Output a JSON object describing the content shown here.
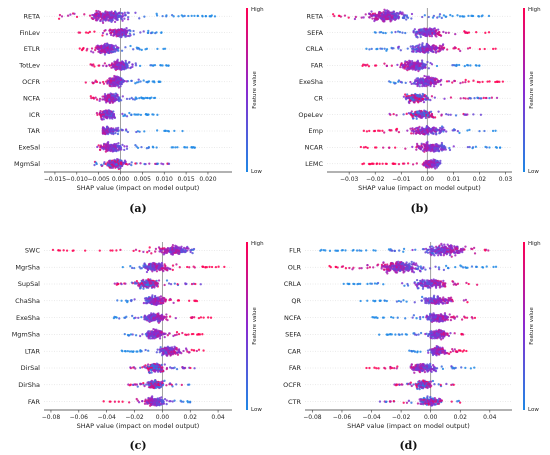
{
  "colors": {
    "low": "#1e88e5",
    "high": "#ff0052",
    "zero_line": "#888888",
    "axis": "#333333"
  },
  "colorbar": {
    "high_label": "High",
    "low_label": "Low",
    "title": "Feature value"
  },
  "chart_data": [
    {
      "type": "scatter",
      "panel_label": "(a)",
      "xlabel": "SHAP value (impact on model output)",
      "xlim": [
        -0.0175,
        0.0255
      ],
      "xticks": [
        -0.015,
        -0.01,
        -0.005,
        0.0,
        0.005,
        0.01,
        0.015,
        0.02
      ],
      "xtick_labels": [
        "−0.015",
        "−0.010",
        "−0.005",
        "0.000",
        "0.005",
        "0.010",
        "0.015",
        "0.020"
      ],
      "features": [
        {
          "name": "RETA",
          "range": [
            -0.015,
            0.023
          ],
          "center": -0.003,
          "spread": 0.95,
          "trend": "high-left"
        },
        {
          "name": "FinLev",
          "range": [
            -0.01,
            0.01
          ],
          "center": 0.0,
          "spread": 0.55,
          "trend": "high-left"
        },
        {
          "name": "ETLR",
          "range": [
            -0.0095,
            0.0105
          ],
          "center": -0.003,
          "spread": 0.8,
          "trend": "high-left"
        },
        {
          "name": "TotLev",
          "range": [
            -0.007,
            0.011
          ],
          "center": 0.0,
          "spread": 0.65,
          "trend": "high-left"
        },
        {
          "name": "OCFR",
          "range": [
            -0.008,
            0.01
          ],
          "center": -0.001,
          "spread": 0.75,
          "trend": "high-left"
        },
        {
          "name": "NCFA",
          "range": [
            -0.007,
            0.008
          ],
          "center": -0.002,
          "spread": 0.7,
          "trend": "high-left"
        },
        {
          "name": "ICR",
          "range": [
            -0.006,
            0.009
          ],
          "center": -0.003,
          "spread": 0.6,
          "trend": "high-left"
        },
        {
          "name": "TAR",
          "range": [
            -0.004,
            0.017
          ],
          "center": -0.003,
          "spread": 0.45,
          "trend": "high-left"
        },
        {
          "name": "ExeSal",
          "range": [
            -0.006,
            0.017
          ],
          "center": -0.002,
          "spread": 0.55,
          "trend": "high-left"
        },
        {
          "name": "MgmSal",
          "range": [
            -0.006,
            0.012
          ],
          "center": -0.001,
          "spread": 0.6,
          "trend": "mixed"
        }
      ]
    },
    {
      "type": "scatter",
      "panel_label": "(b)",
      "xlabel": "SHAP value (impact on model output)",
      "xlim": [
        -0.0385,
        0.0325
      ],
      "xticks": [
        -0.03,
        -0.02,
        -0.01,
        0.0,
        0.01,
        0.02,
        0.03
      ],
      "xtick_labels": [
        "−0.03",
        "−0.02",
        "−0.01",
        "0.00",
        "0.01",
        "0.02",
        "0.03"
      ],
      "features": [
        {
          "name": "RETA",
          "range": [
            -0.037,
            0.025
          ],
          "center": -0.015,
          "spread": 0.95,
          "trend": "high-left"
        },
        {
          "name": "SEFA",
          "range": [
            -0.022,
            0.024
          ],
          "center": 0.0,
          "spread": 0.55,
          "trend": "high-right"
        },
        {
          "name": "CRLA",
          "range": [
            -0.024,
            0.027
          ],
          "center": 0.0,
          "spread": 0.7,
          "trend": "high-right"
        },
        {
          "name": "FAR",
          "range": [
            -0.025,
            0.02
          ],
          "center": -0.005,
          "spread": 0.75,
          "trend": "high-left"
        },
        {
          "name": "ExeSha",
          "range": [
            -0.017,
            0.03
          ],
          "center": 0.0,
          "spread": 0.75,
          "trend": "high-right"
        },
        {
          "name": "CR",
          "range": [
            -0.009,
            0.027
          ],
          "center": -0.004,
          "spread": 0.55,
          "trend": "mixed"
        },
        {
          "name": "OpeLev",
          "range": [
            -0.016,
            0.022
          ],
          "center": -0.002,
          "spread": 0.45,
          "trend": "mixed"
        },
        {
          "name": "Emp",
          "range": [
            -0.025,
            0.027
          ],
          "center": 0.0,
          "spread": 0.6,
          "trend": "high-left"
        },
        {
          "name": "NCAR",
          "range": [
            -0.026,
            0.028
          ],
          "center": 0.002,
          "spread": 0.6,
          "trend": "high-left"
        },
        {
          "name": "LEMC",
          "range": [
            -0.025,
            0.005
          ],
          "center": 0.002,
          "spread": 0.45,
          "trend": "high-left"
        }
      ]
    },
    {
      "type": "scatter",
      "panel_label": "(c)",
      "xlabel": "SHAP value (impact on model output)",
      "xlim": [
        -0.085,
        0.05
      ],
      "xticks": [
        -0.08,
        -0.06,
        -0.04,
        -0.02,
        0.0,
        0.02,
        0.04
      ],
      "xtick_labels": [
        "−0.08",
        "−0.06",
        "−0.04",
        "−0.02",
        "0.00",
        "0.02",
        "0.04"
      ],
      "features": [
        {
          "name": "SWC",
          "range": [
            -0.08,
            0.025
          ],
          "center": 0.01,
          "spread": 0.55,
          "trend": "high-left"
        },
        {
          "name": "MgrSha",
          "range": [
            -0.03,
            0.045
          ],
          "center": -0.005,
          "spread": 0.5,
          "trend": "high-right"
        },
        {
          "name": "SupSal",
          "range": [
            -0.035,
            0.03
          ],
          "center": -0.01,
          "spread": 0.6,
          "trend": "mixed"
        },
        {
          "name": "ChaSha",
          "range": [
            -0.035,
            0.025
          ],
          "center": -0.005,
          "spread": 0.55,
          "trend": "high-right"
        },
        {
          "name": "ExeSha",
          "range": [
            -0.035,
            0.035
          ],
          "center": -0.005,
          "spread": 0.55,
          "trend": "high-right"
        },
        {
          "name": "MgmSha",
          "range": [
            -0.03,
            0.03
          ],
          "center": -0.005,
          "spread": 0.55,
          "trend": "high-right"
        },
        {
          "name": "LTAR",
          "range": [
            -0.03,
            0.03
          ],
          "center": 0.005,
          "spread": 0.6,
          "trend": "high-right"
        },
        {
          "name": "DirSal",
          "range": [
            -0.025,
            0.025
          ],
          "center": -0.005,
          "spread": 0.55,
          "trend": "mixed"
        },
        {
          "name": "DirSha",
          "range": [
            -0.025,
            0.02
          ],
          "center": -0.005,
          "spread": 0.5,
          "trend": "mixed"
        },
        {
          "name": "FAR",
          "range": [
            -0.045,
            0.02
          ],
          "center": -0.005,
          "spread": 0.5,
          "trend": "high-left"
        }
      ]
    },
    {
      "type": "scatter",
      "panel_label": "(d)",
      "xlabel": "SHAP value (impact on model output)",
      "xlim": [
        -0.085,
        0.055
      ],
      "xticks": [
        -0.08,
        -0.06,
        -0.04,
        -0.02,
        0.0,
        0.02,
        0.04
      ],
      "xtick_labels": [
        "−0.08",
        "−0.06",
        "−0.04",
        "−0.02",
        "0.00",
        "0.02",
        "0.04"
      ],
      "features": [
        {
          "name": "FLR",
          "range": [
            -0.075,
            0.045
          ],
          "center": 0.01,
          "spread": 0.9,
          "trend": "high-right"
        },
        {
          "name": "OLR",
          "range": [
            -0.07,
            0.045
          ],
          "center": -0.02,
          "spread": 0.95,
          "trend": "high-left"
        },
        {
          "name": "CRLA",
          "range": [
            -0.06,
            0.035
          ],
          "center": 0.0,
          "spread": 0.6,
          "trend": "high-right"
        },
        {
          "name": "QR",
          "range": [
            -0.05,
            0.025
          ],
          "center": 0.005,
          "spread": 0.45,
          "trend": "high-right"
        },
        {
          "name": "NCFA",
          "range": [
            -0.04,
            0.03
          ],
          "center": 0.005,
          "spread": 0.55,
          "trend": "high-right"
        },
        {
          "name": "SEFA",
          "range": [
            -0.035,
            0.025
          ],
          "center": 0.005,
          "spread": 0.5,
          "trend": "high-right"
        },
        {
          "name": "CAR",
          "range": [
            -0.015,
            0.025
          ],
          "center": 0.005,
          "spread": 0.5,
          "trend": "high-right"
        },
        {
          "name": "FAR",
          "range": [
            -0.045,
            0.03
          ],
          "center": -0.005,
          "spread": 0.5,
          "trend": "high-left"
        },
        {
          "name": "OCFR",
          "range": [
            -0.025,
            0.02
          ],
          "center": -0.005,
          "spread": 0.45,
          "trend": "mixed"
        },
        {
          "name": "CTR",
          "range": [
            -0.04,
            0.02
          ],
          "center": 0.0,
          "spread": 0.5,
          "trend": "mixed"
        }
      ]
    }
  ]
}
